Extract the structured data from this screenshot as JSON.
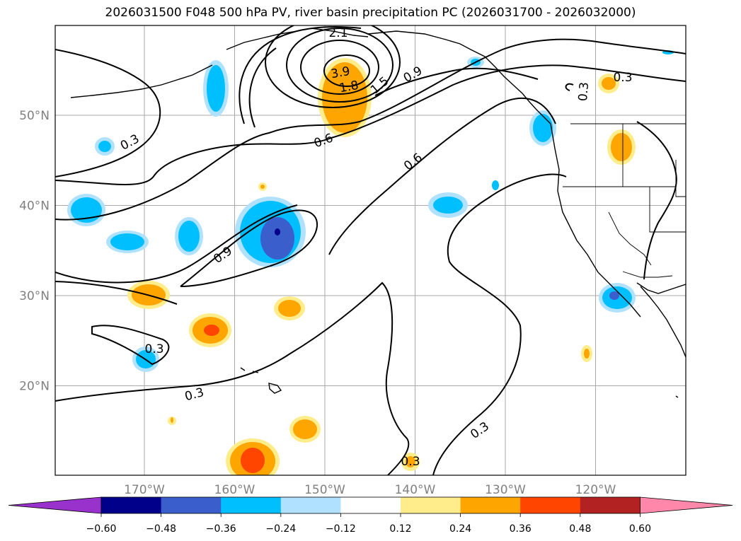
{
  "title": "2026031500 F048 500 hPa PV, river basin precipitation PC (2026031700 - 2026032000)",
  "map": {
    "lon_ticks": [
      {
        "value": -170,
        "label": "170°W"
      },
      {
        "value": -160,
        "label": "160°W"
      },
      {
        "value": -150,
        "label": "150°W"
      },
      {
        "value": -140,
        "label": "140°W"
      },
      {
        "value": -130,
        "label": "130°W"
      },
      {
        "value": -120,
        "label": "120°W"
      }
    ],
    "lat_ticks": [
      {
        "value": 50,
        "label": "50°N"
      },
      {
        "value": 40,
        "label": "40°N"
      },
      {
        "value": 30,
        "label": "30°N"
      },
      {
        "value": 20,
        "label": "20°N"
      }
    ],
    "grid": true,
    "pv_contour_labels": [
      "3.9",
      "2.1",
      "1.8",
      "1.5",
      "0.9",
      "0.9",
      "0.6",
      "0.6",
      "0.3",
      "0.3",
      "0.3",
      "0.3",
      "0.3",
      "0.3",
      "0.3"
    ]
  },
  "colorbar": {
    "tick_labels": [
      "−0.60",
      "−0.48",
      "−0.36",
      "−0.24",
      "−0.12",
      "0.12",
      "0.24",
      "0.36",
      "0.48",
      "0.60"
    ],
    "under_color": "#9932cc",
    "over_color": "#ff88aa",
    "colors": [
      "#00008b",
      "#3a5fcd",
      "#00bfff",
      "#b0e2ff",
      "#ffffff",
      "#ffec8b",
      "#ffa500",
      "#ff4500",
      "#b22222"
    ]
  }
}
